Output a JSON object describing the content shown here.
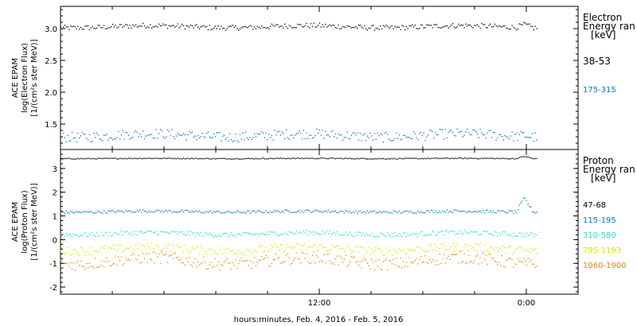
{
  "chart_data": [
    {
      "type": "scatter",
      "panel": "electron",
      "ylabel_lines": [
        "ACE EPAM",
        "log(Electron Flux)",
        "[1/(cm²s ster MeV)]"
      ],
      "ylim": [
        1.1,
        3.35
      ],
      "yticks": [
        1.5,
        2.0,
        2.5,
        3.0
      ],
      "ytick_labels": [
        "1.5",
        "2.0",
        "2.5",
        "3.0"
      ],
      "legend_title": [
        "Electron",
        "Energy ran",
        "[keV]"
      ],
      "series": [
        {
          "name": "38-53",
          "color": "#000000",
          "mean": 3.03,
          "spread": 0.045,
          "jitter": 0.04,
          "end_bump": 0.05
        },
        {
          "name": "175-315",
          "color": "#0077cc",
          "mean": 1.32,
          "spread": 0.07,
          "jitter": 0.08,
          "end_bump": 0.03
        }
      ]
    },
    {
      "type": "scatter",
      "panel": "proton",
      "ylabel_lines": [
        "ACE EPAM",
        "log(Proton Flux)",
        "[1/(cm²s ster MeV)]"
      ],
      "ylim": [
        -2.3,
        3.8
      ],
      "yticks": [
        -2,
        -1,
        0,
        1,
        2,
        3
      ],
      "ytick_labels": [
        "-2",
        "-1",
        "0",
        "1",
        "2",
        "3"
      ],
      "legend_title": [
        "Proton",
        "Energy ran",
        "[keV]"
      ],
      "series": [
        {
          "name": "47-68",
          "color": "#000000",
          "mean": 3.42,
          "spread": 0.02,
          "jitter": 0.02,
          "end_bump": 0.1
        },
        {
          "name": "115-195",
          "color": "#0077cc",
          "mean": 1.18,
          "spread": 0.06,
          "jitter": 0.06,
          "end_bump": 0.6
        },
        {
          "name": "310-580",
          "color": "#22ddcc",
          "mean": 0.25,
          "spread": 0.12,
          "jitter": 0.1,
          "end_bump": 0.0
        },
        {
          "name": "795-1193",
          "color": "#e0e000",
          "mean": -0.4,
          "spread": 0.2,
          "jitter": 0.18,
          "end_bump": 0.0
        },
        {
          "name": "1060-1900",
          "color": "#e08800",
          "mean": -0.9,
          "spread": 0.35,
          "jitter": 0.25,
          "end_bump": 0.0
        }
      ]
    }
  ],
  "x_axis": {
    "xlim_hours": [
      -3,
      27
    ],
    "data_end_hours": 24.6,
    "major_ticks": [
      12,
      24
    ],
    "major_tick_labels": [
      "12:00",
      "0:00"
    ],
    "minor_ticks": [
      0,
      3,
      6,
      9,
      15,
      18,
      21,
      27
    ],
    "xlabel": "hours:minutes, Feb.  4, 2016 - Feb.  5, 2016"
  }
}
